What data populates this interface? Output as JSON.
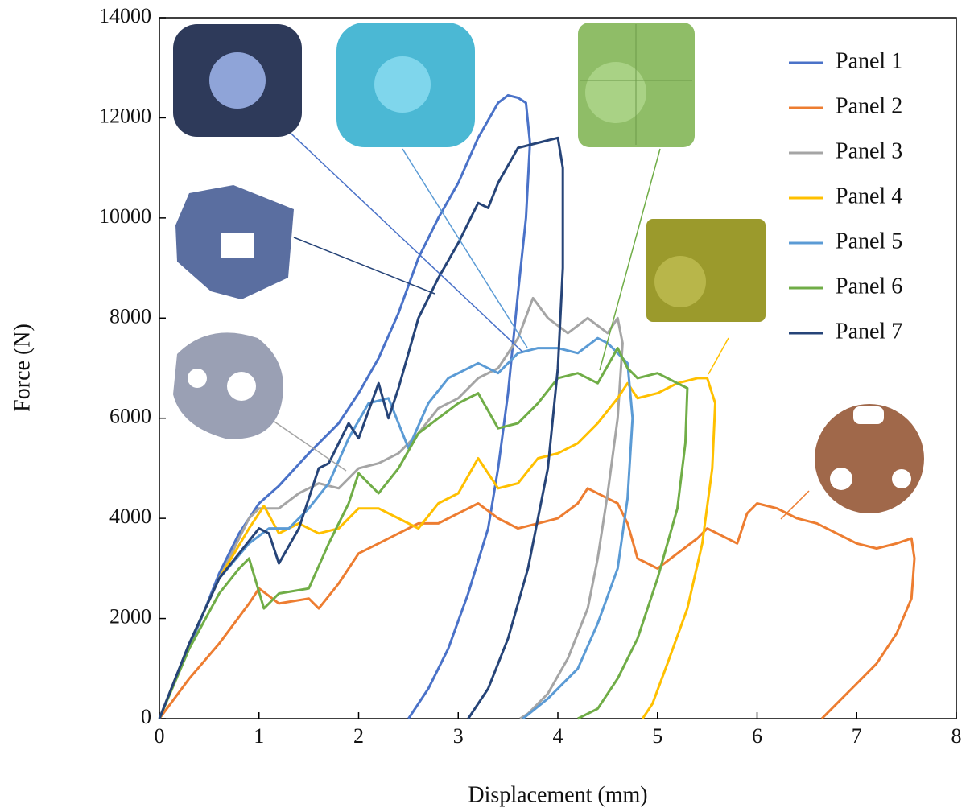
{
  "chart_data": {
    "type": "line",
    "xlabel": "Displacement (mm)",
    "ylabel": "Force (N)",
    "xlim": [
      0,
      8
    ],
    "xticks": [
      0,
      1,
      2,
      3,
      4,
      5,
      6,
      7,
      8
    ],
    "ylim": [
      0,
      14000
    ],
    "yticks": [
      0,
      2000,
      4000,
      6000,
      8000,
      10000,
      12000,
      14000
    ],
    "legend": "top-right",
    "series": [
      {
        "name": "Panel 1",
        "color": "#4a72c8",
        "x": [
          0,
          0.2,
          0.4,
          0.6,
          0.8,
          1.0,
          1.2,
          1.5,
          1.8,
          2.0,
          2.2,
          2.4,
          2.6,
          2.8,
          3.0,
          3.2,
          3.4,
          3.5,
          3.6,
          3.68,
          3.72,
          3.68,
          3.6,
          3.5,
          3.4,
          3.3,
          3.1,
          2.9,
          2.7,
          2.5
        ],
        "values": [
          0,
          1000,
          1900,
          2900,
          3700,
          4300,
          4650,
          5300,
          5900,
          6500,
          7200,
          8100,
          9200,
          10000,
          10700,
          11600,
          12300,
          12450,
          12400,
          12300,
          11500,
          10000,
          8500,
          6500,
          5000,
          3800,
          2500,
          1400,
          600,
          0
        ]
      },
      {
        "name": "Panel 2",
        "color": "#ed7d31",
        "x": [
          0,
          0.3,
          0.6,
          0.9,
          1.0,
          1.2,
          1.5,
          1.6,
          1.8,
          2.0,
          2.2,
          2.4,
          2.6,
          2.8,
          3.0,
          3.2,
          3.4,
          3.6,
          3.8,
          4.0,
          4.2,
          4.3,
          4.5,
          4.6,
          4.7,
          4.8,
          5.0,
          5.2,
          5.4,
          5.5,
          5.6,
          5.8,
          5.9,
          6.0,
          6.2,
          6.4,
          6.6,
          6.8,
          7.0,
          7.2,
          7.4,
          7.55,
          7.58,
          7.55,
          7.4,
          7.2,
          7.0,
          6.8,
          6.65
        ],
        "values": [
          0,
          800,
          1500,
          2300,
          2600,
          2300,
          2400,
          2200,
          2700,
          3300,
          3500,
          3700,
          3900,
          3900,
          4100,
          4300,
          4000,
          3800,
          3900,
          4000,
          4300,
          4600,
          4400,
          4300,
          3900,
          3200,
          3000,
          3300,
          3600,
          3800,
          3700,
          3500,
          4100,
          4300,
          4200,
          4000,
          3900,
          3700,
          3500,
          3400,
          3500,
          3600,
          3200,
          2400,
          1700,
          1100,
          700,
          300,
          0
        ]
      },
      {
        "name": "Panel 3",
        "color": "#a5a5a5",
        "x": [
          0,
          0.3,
          0.6,
          0.9,
          1.0,
          1.2,
          1.4,
          1.6,
          1.8,
          2.0,
          2.2,
          2.4,
          2.6,
          2.8,
          3.0,
          3.2,
          3.4,
          3.6,
          3.75,
          3.9,
          4.1,
          4.3,
          4.5,
          4.6,
          4.65,
          4.6,
          4.5,
          4.4,
          4.3,
          4.1,
          3.9,
          3.7,
          3.62
        ],
        "values": [
          0,
          1500,
          2800,
          4000,
          4200,
          4200,
          4500,
          4700,
          4600,
          5000,
          5100,
          5300,
          5700,
          6200,
          6400,
          6800,
          7000,
          7600,
          8400,
          8000,
          7700,
          8000,
          7700,
          8000,
          7500,
          6000,
          4500,
          3200,
          2200,
          1200,
          500,
          100,
          0
        ]
      },
      {
        "name": "Panel 4",
        "color": "#ffc000",
        "x": [
          0,
          0.3,
          0.6,
          0.9,
          1.05,
          1.2,
          1.4,
          1.6,
          1.8,
          2.0,
          2.2,
          2.4,
          2.6,
          2.8,
          3.0,
          3.2,
          3.4,
          3.6,
          3.8,
          4.0,
          4.2,
          4.4,
          4.6,
          4.7,
          4.8,
          5.0,
          5.2,
          5.4,
          5.5,
          5.58,
          5.55,
          5.45,
          5.3,
          5.1,
          4.95,
          4.85
        ],
        "values": [
          0,
          1500,
          2800,
          3800,
          4250,
          3700,
          3900,
          3700,
          3800,
          4200,
          4200,
          4000,
          3800,
          4300,
          4500,
          5200,
          4600,
          4700,
          5200,
          5300,
          5500,
          5900,
          6400,
          6700,
          6400,
          6500,
          6700,
          6800,
          6800,
          6300,
          5000,
          3500,
          2200,
          1100,
          300,
          0
        ]
      },
      {
        "name": "Panel 5",
        "color": "#5b9bd5",
        "x": [
          0,
          0.3,
          0.6,
          0.9,
          1.1,
          1.3,
          1.5,
          1.7,
          1.9,
          2.1,
          2.3,
          2.5,
          2.7,
          2.9,
          3.2,
          3.4,
          3.6,
          3.8,
          4.0,
          4.2,
          4.4,
          4.5,
          4.7,
          4.75,
          4.7,
          4.6,
          4.4,
          4.2,
          3.9,
          3.65
        ],
        "values": [
          0,
          1500,
          2800,
          3500,
          3800,
          3800,
          4200,
          4700,
          5600,
          6300,
          6400,
          5400,
          6300,
          6800,
          7100,
          6900,
          7300,
          7400,
          7400,
          7300,
          7600,
          7500,
          7100,
          6000,
          4400,
          3000,
          1900,
          1000,
          400,
          0
        ]
      },
      {
        "name": "Panel 6",
        "color": "#70ad47",
        "x": [
          0,
          0.3,
          0.6,
          0.8,
          0.9,
          1.05,
          1.2,
          1.5,
          1.7,
          1.9,
          2.0,
          2.2,
          2.4,
          2.6,
          2.8,
          3.0,
          3.2,
          3.4,
          3.6,
          3.8,
          4.0,
          4.2,
          4.4,
          4.6,
          4.7,
          4.8,
          5.0,
          5.2,
          5.3,
          5.28,
          5.2,
          5.0,
          4.8,
          4.6,
          4.4,
          4.2
        ],
        "values": [
          0,
          1400,
          2500,
          3000,
          3200,
          2200,
          2500,
          2600,
          3500,
          4300,
          4900,
          4500,
          5000,
          5700,
          6000,
          6300,
          6500,
          5800,
          5900,
          6300,
          6800,
          6900,
          6700,
          7400,
          7000,
          6800,
          6900,
          6700,
          6600,
          5500,
          4200,
          2800,
          1600,
          800,
          200,
          0
        ]
      },
      {
        "name": "Panel 7",
        "color": "#264478",
        "x": [
          0,
          0.3,
          0.6,
          0.8,
          1.0,
          1.1,
          1.2,
          1.4,
          1.6,
          1.7,
          1.9,
          2.0,
          2.2,
          2.3,
          2.4,
          2.6,
          2.8,
          3.0,
          3.2,
          3.3,
          3.4,
          3.6,
          3.8,
          4.0,
          4.05,
          4.05,
          4.0,
          3.9,
          3.7,
          3.5,
          3.3,
          3.1
        ],
        "values": [
          0,
          1500,
          2800,
          3300,
          3800,
          3700,
          3100,
          3800,
          5000,
          5100,
          5900,
          5600,
          6700,
          6000,
          6600,
          8000,
          8800,
          9500,
          10300,
          10200,
          10700,
          11400,
          11500,
          11600,
          11000,
          9000,
          7000,
          5000,
          3000,
          1600,
          600,
          0
        ]
      }
    ]
  }
}
